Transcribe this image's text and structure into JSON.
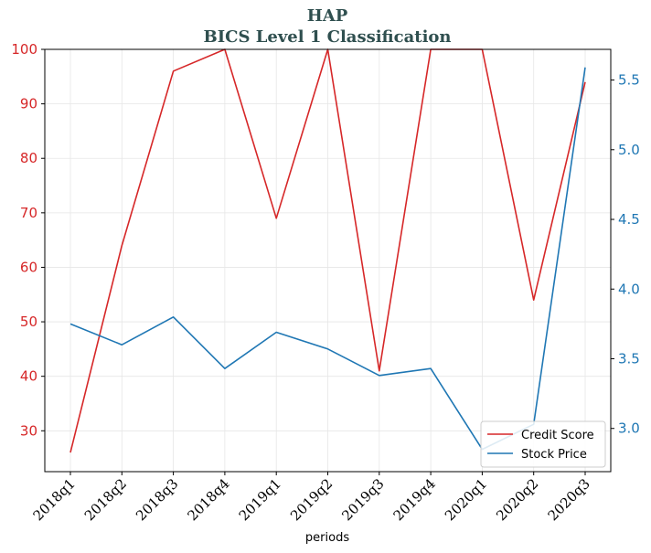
{
  "chart_data": {
    "type": "line",
    "title": "HAP",
    "subtitle": "BICS Level 1 Classification",
    "xlabel": "periods",
    "categories": [
      "2018q1",
      "2018q2",
      "2018q3",
      "2018q4",
      "2019q1",
      "2019q2",
      "2019q3",
      "2019q4",
      "2020q1",
      "2020q2",
      "2020q3"
    ],
    "series": [
      {
        "name": "Credit Score",
        "axis": "left",
        "color": "#d62728",
        "values": [
          26,
          64,
          96,
          100,
          69,
          100,
          41,
          100,
          100,
          54,
          94
        ]
      },
      {
        "name": "Stock Price",
        "axis": "right",
        "color": "#1f77b4",
        "values": [
          3.75,
          3.6,
          3.8,
          3.43,
          3.69,
          3.57,
          3.38,
          3.43,
          2.85,
          3.03,
          5.59
        ]
      }
    ],
    "y_left": {
      "ylim": [
        22.5,
        100
      ],
      "ticks": [
        30,
        40,
        50,
        60,
        70,
        80,
        90,
        100
      ],
      "tick_labels": [
        "30",
        "40",
        "50",
        "60",
        "70",
        "80",
        "90",
        "100"
      ],
      "color": "#d62728"
    },
    "y_right": {
      "ylim": [
        2.69,
        5.72
      ],
      "ticks": [
        3.0,
        3.5,
        4.0,
        4.5,
        5.0,
        5.5
      ],
      "tick_labels": [
        "3.0",
        "3.5",
        "4.0",
        "4.5",
        "5.0",
        "5.5"
      ],
      "color": "#1f77b4"
    },
    "grid": true,
    "legend_position": "bottom-right"
  }
}
